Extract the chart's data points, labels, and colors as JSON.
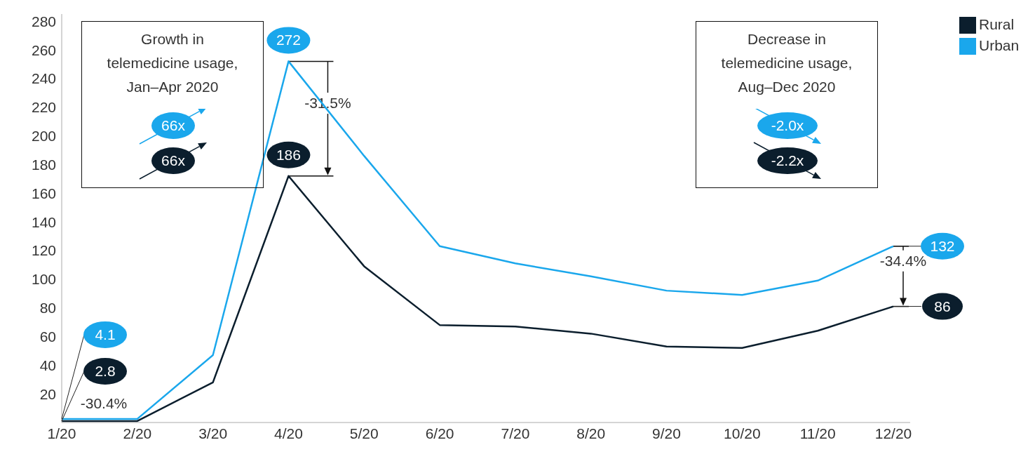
{
  "chart_data": {
    "type": "line",
    "categories": [
      "1/20",
      "2/20",
      "3/20",
      "4/20",
      "5/20",
      "6/20",
      "7/20",
      "8/20",
      "9/20",
      "10/20",
      "11/20",
      "12/20"
    ],
    "series": [
      {
        "name": "Rural",
        "color": "#0b1e2d",
        "values": [
          1,
          1,
          28,
          172,
          109,
          68,
          67,
          62,
          53,
          52,
          64,
          81
        ]
      },
      {
        "name": "Urban",
        "color": "#1aa7ec",
        "values": [
          2.5,
          2.5,
          47,
          252,
          186,
          123,
          111,
          102,
          92,
          89,
          99,
          123
        ]
      }
    ],
    "ylim": [
      0,
      285
    ],
    "yticks": [
      20,
      40,
      60,
      80,
      100,
      120,
      140,
      160,
      180,
      200,
      220,
      240,
      260,
      280
    ],
    "legend": "top right",
    "marker": "none",
    "line_style": "solid",
    "annotations": [
      "Growth in telemedicine usage, Jan–Apr 2020",
      "66x",
      "66x",
      "Decrease in telemedicine usage, Aug–Dec 2020",
      "-2.0x",
      "-2.2x",
      "-30.4%",
      "-31.5%",
      "-34.4%",
      {
        "text": "4.1",
        "x": "1/20",
        "y": 2.5
      },
      {
        "text": "2.8",
        "x": "1/20",
        "y": 1
      },
      {
        "text": "272",
        "x": "4/20",
        "y": 252
      },
      {
        "text": "186",
        "x": "4/20",
        "y": 172
      },
      {
        "text": "132",
        "x": "12/20",
        "y": 123
      },
      {
        "text": "86",
        "x": "12/20",
        "y": 81
      }
    ]
  }
}
